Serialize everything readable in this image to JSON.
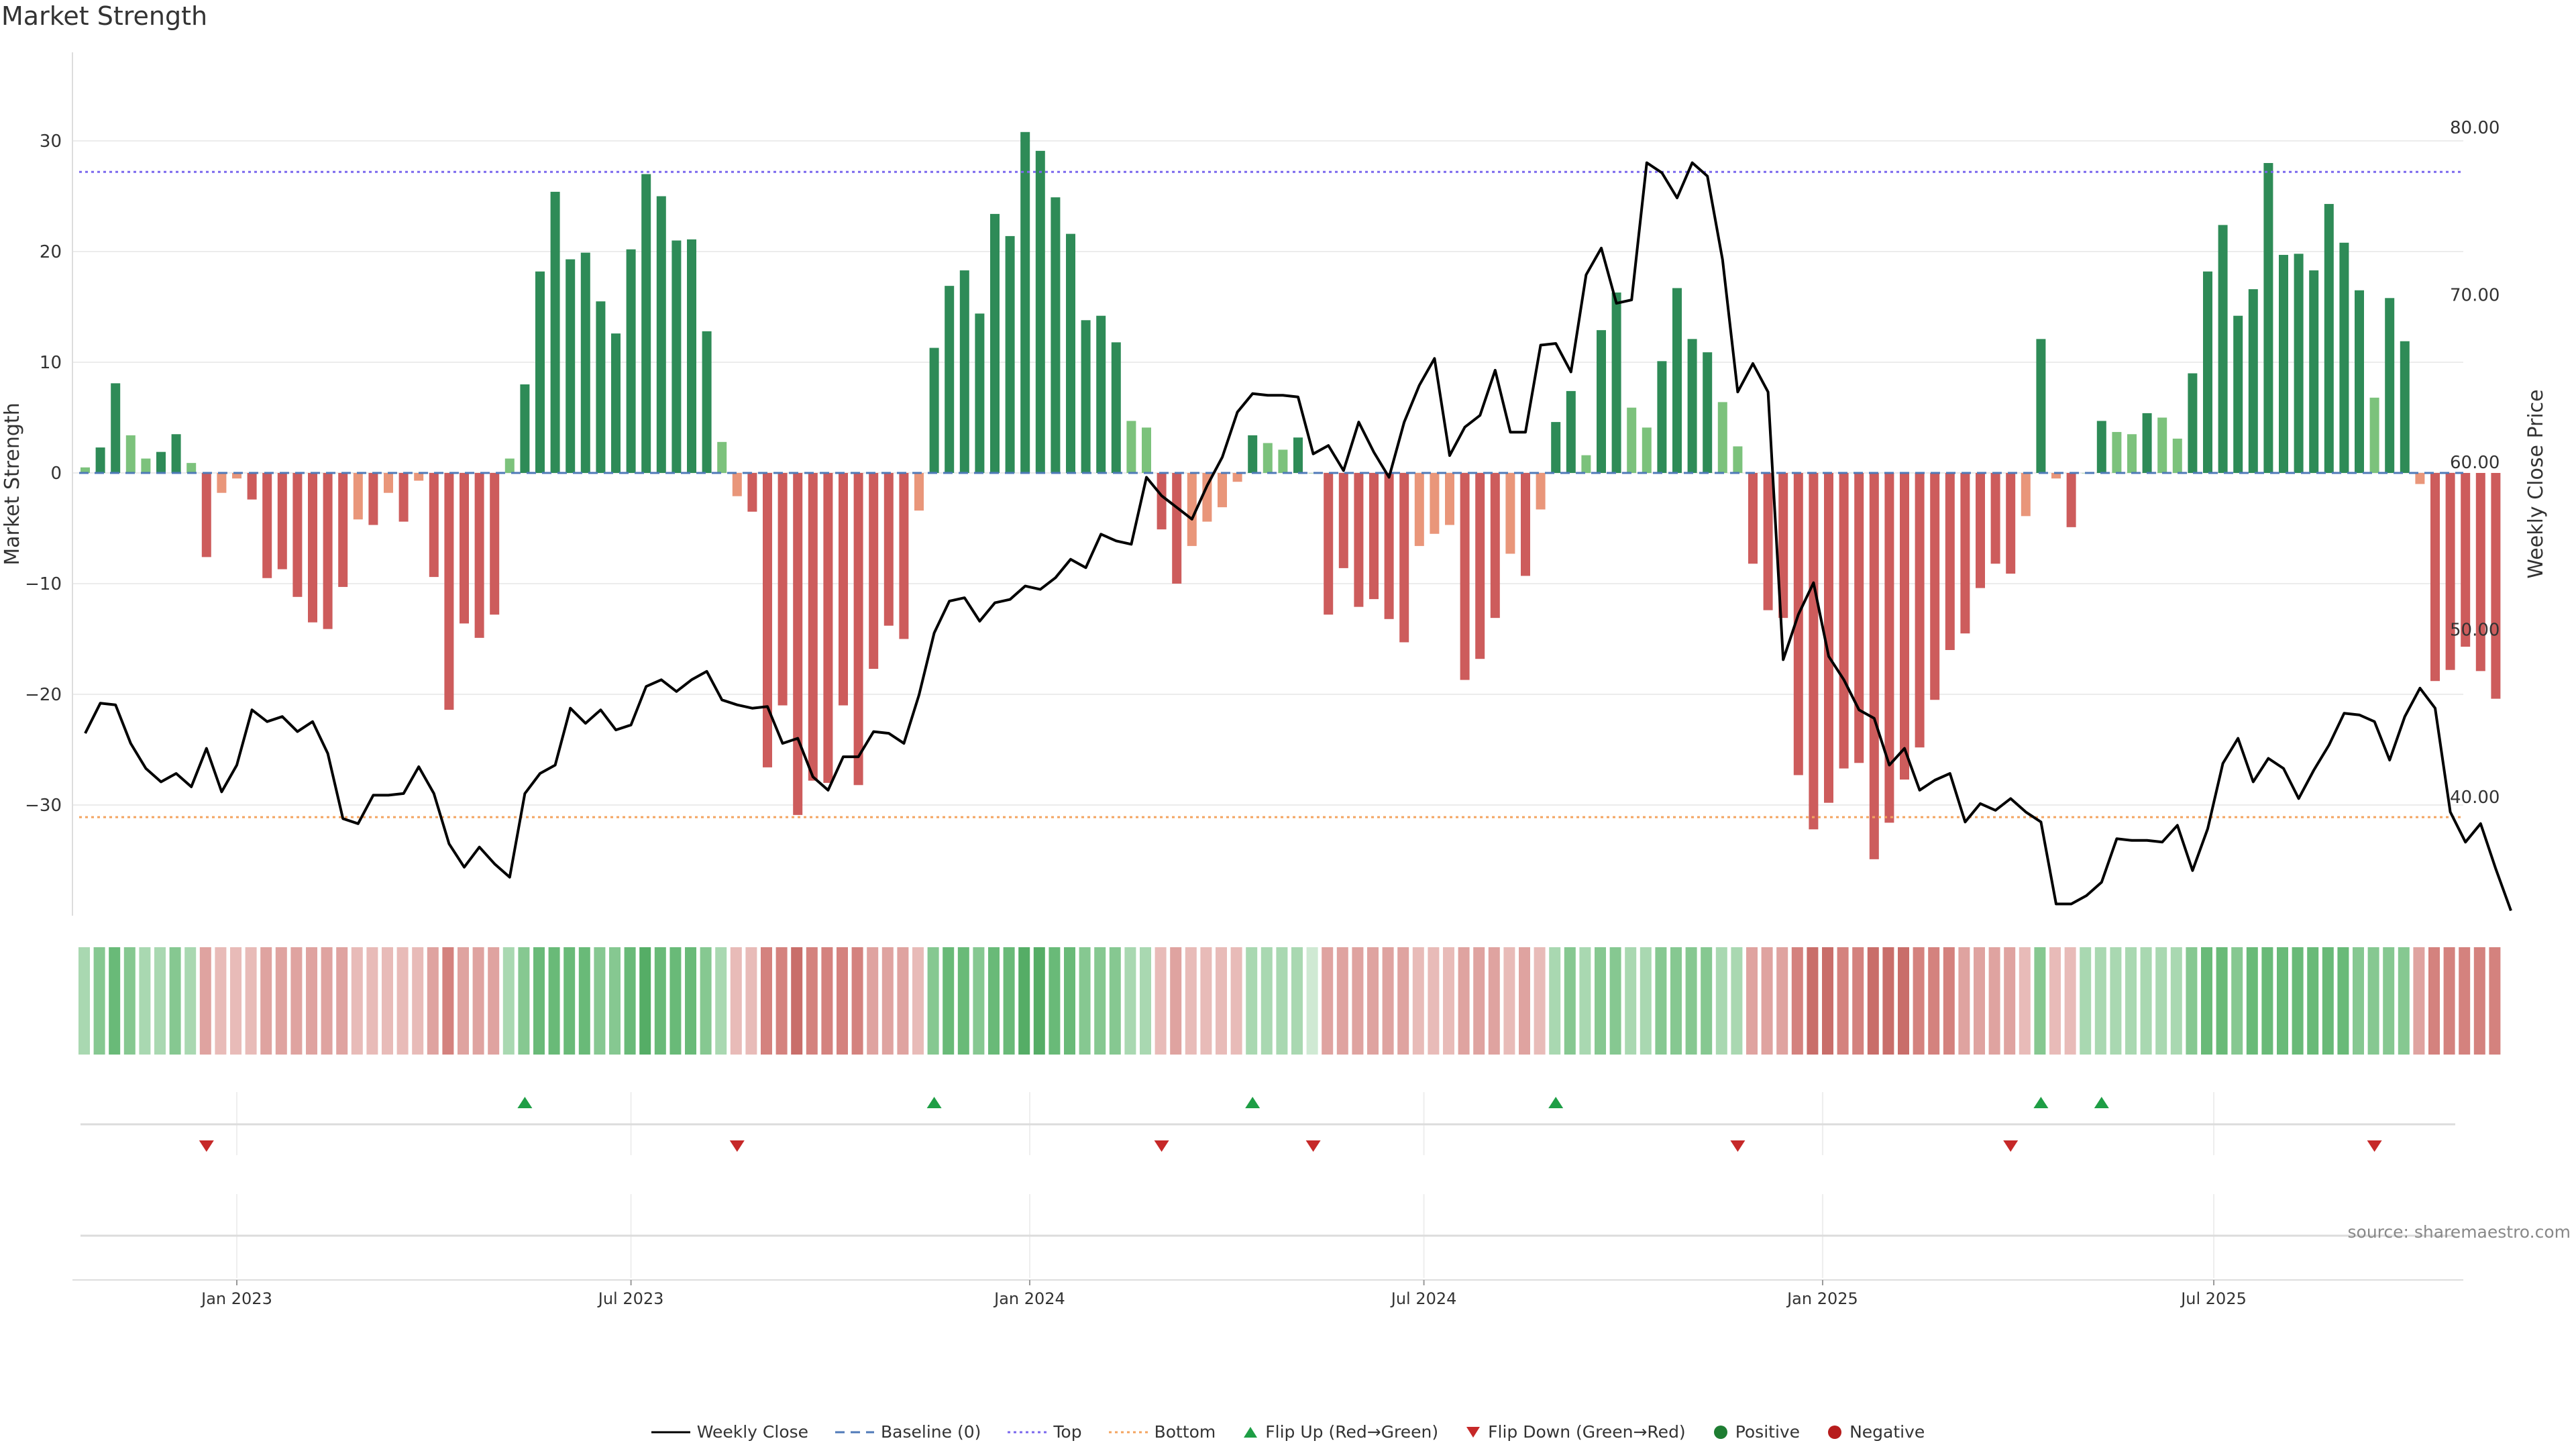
{
  "title": "Market Strength",
  "source_text": "source: sharemaestro.com",
  "colors": {
    "strong_green": "#2e8b57",
    "light_green": "#7cc27c",
    "strong_red": "#cd5c5c",
    "light_red": "#e9967a",
    "close_line": "#000000",
    "baseline": "#4f7ab8",
    "top": "#7b68ee",
    "bottom": "#f4a460",
    "flip_up": "#1e9e45",
    "flip_down": "#c62828",
    "positive": "#1e7d32",
    "negative": "#b71c1c"
  },
  "legend": [
    {
      "label": "Weekly Close",
      "kind": "line"
    },
    {
      "label": "Baseline (0)",
      "kind": "dashed"
    },
    {
      "label": "Top",
      "kind": "dotted-top"
    },
    {
      "label": "Bottom",
      "kind": "dotted-bottom"
    },
    {
      "label": "Flip Up (Red→Green)",
      "kind": "tri-up"
    },
    {
      "label": "Flip Down (Green→Red)",
      "kind": "tri-down"
    },
    {
      "label": "Positive",
      "kind": "dot-pos"
    },
    {
      "label": "Negative",
      "kind": "dot-neg"
    }
  ],
  "chart_data": {
    "type": "bar",
    "title": "Market Strength",
    "ylabel": "Market Strength",
    "y2label": "Weekly Close Price",
    "ylim": [
      -40,
      38
    ],
    "y2lim": [
      32.9,
      84.5
    ],
    "yticks": [
      -30,
      -20,
      -10,
      0,
      10,
      20,
      30
    ],
    "ytick_labels": [
      "−30",
      "−20",
      "−10",
      "0",
      "10",
      "20",
      "30"
    ],
    "y2ticks": [
      40,
      50,
      60,
      70,
      80
    ],
    "y2tick_labels": [
      "40.00",
      "50.00",
      "60.00",
      "70.00",
      "80.00"
    ],
    "top_level": 27.2,
    "bottom_level": -31.1,
    "x_ticks": [
      {
        "label": "Jan 2023",
        "week": 10
      },
      {
        "label": "Jul 2023",
        "week": 36
      },
      {
        "label": "Jan 2024",
        "week": 62.3
      },
      {
        "label": "Jul 2024",
        "week": 88.3
      },
      {
        "label": "Jan 2025",
        "week": 114.6
      },
      {
        "label": "Jul 2025",
        "week": 140.4
      }
    ],
    "strength": [
      0.5,
      2.3,
      8.1,
      3.4,
      1.3,
      1.9,
      3.5,
      0.9,
      -7.6,
      -1.8,
      -0.5,
      -2.4,
      -9.5,
      -8.7,
      -11.2,
      -13.5,
      -14.1,
      -10.3,
      -4.2,
      -4.7,
      -1.8,
      -4.4,
      -0.7,
      -9.4,
      -21.4,
      -13.6,
      -14.9,
      -12.8,
      1.3,
      8.0,
      18.2,
      25.4,
      19.3,
      19.9,
      15.5,
      12.6,
      20.2,
      27.0,
      25.0,
      21.0,
      21.1,
      12.8,
      2.8,
      -2.1,
      -3.5,
      -26.6,
      -21.0,
      -30.9,
      -27.8,
      -28.0,
      -21.0,
      -28.2,
      -17.7,
      -13.8,
      -15.0,
      -3.4,
      11.3,
      16.9,
      18.3,
      14.4,
      23.4,
      21.4,
      30.8,
      29.1,
      24.9,
      21.6,
      13.8,
      14.2,
      11.8,
      4.7,
      4.1,
      -5.1,
      -10.0,
      -6.6,
      -4.4,
      -3.1,
      -0.8,
      3.4,
      2.7,
      2.1,
      3.2,
      0.0,
      -12.8,
      -8.6,
      -12.1,
      -11.4,
      -13.2,
      -15.3,
      -6.6,
      -5.5,
      -4.7,
      -18.7,
      -16.8,
      -13.1,
      -7.3,
      -9.3,
      -3.3,
      4.6,
      7.4,
      1.6,
      12.9,
      16.3,
      5.9,
      4.1,
      10.1,
      16.7,
      12.1,
      10.9,
      6.4,
      2.4,
      -8.2,
      -12.4,
      -13.1,
      -27.3,
      -32.2,
      -29.8,
      -26.7,
      -26.2,
      -34.9,
      -31.6,
      -27.7,
      -24.8,
      -20.5,
      -16.0,
      -14.5,
      -10.4,
      -8.2,
      -9.1,
      -3.9,
      12.1,
      -0.5,
      -4.9,
      0.0,
      4.7,
      3.7,
      3.5,
      5.4,
      5.0,
      3.1,
      9.0,
      18.2,
      22.4,
      14.2,
      16.6,
      28.0,
      19.7,
      19.8,
      18.3,
      24.3,
      20.8,
      16.5,
      6.8,
      15.8,
      11.9,
      -1.0,
      -18.8,
      -17.8,
      -15.7,
      -17.9,
      -20.4
    ],
    "weekly_close": [
      43.8,
      45.6,
      45.5,
      43.2,
      41.7,
      40.9,
      41.4,
      40.6,
      42.9,
      40.3,
      41.9,
      45.2,
      44.5,
      44.8,
      43.9,
      44.5,
      42.6,
      38.7,
      38.4,
      40.1,
      40.1,
      40.2,
      41.8,
      40.2,
      37.2,
      35.8,
      37.0,
      36.0,
      35.2,
      40.2,
      41.4,
      41.9,
      45.3,
      44.4,
      45.2,
      44.0,
      44.3,
      46.6,
      47.0,
      46.3,
      47.0,
      47.5,
      45.8,
      45.5,
      45.3,
      45.4,
      43.2,
      43.5,
      41.2,
      40.4,
      42.4,
      42.4,
      43.9,
      43.8,
      43.2,
      46.1,
      49.8,
      51.7,
      51.9,
      50.5,
      51.6,
      51.8,
      52.6,
      52.4,
      53.1,
      54.2,
      53.7,
      55.7,
      55.3,
      55.1,
      59.1,
      58.0,
      57.3,
      56.6,
      58.6,
      60.3,
      63.0,
      64.1,
      64.0,
      64.0,
      63.9,
      60.5,
      61.0,
      59.5,
      62.4,
      60.6,
      59.1,
      62.4,
      64.6,
      66.2,
      60.4,
      62.1,
      62.8,
      65.5,
      61.8,
      61.8,
      67.0,
      67.1,
      65.4,
      71.2,
      72.8,
      69.5,
      69.7,
      77.9,
      77.3,
      75.8,
      77.9,
      77.1,
      72.1,
      64.2,
      65.9,
      64.2,
      48.2,
      50.9,
      52.8,
      48.4,
      47.0,
      45.2,
      44.7,
      41.9,
      42.9,
      40.4,
      41.0,
      41.4,
      38.5,
      39.6,
      39.2,
      39.9,
      39.1,
      38.5,
      33.6,
      33.6,
      34.1,
      34.9,
      37.5,
      37.4,
      37.4,
      37.3,
      38.3,
      35.6,
      38.1,
      42.0,
      43.5,
      40.9,
      42.3,
      41.7,
      39.9,
      41.6,
      43.1,
      45.0,
      44.9,
      44.5,
      42.2,
      44.8,
      46.5,
      45.3,
      39.1,
      37.3,
      38.4,
      35.7,
      33.2
    ],
    "heat_level": [
      1,
      2,
      3,
      2,
      1,
      1,
      2,
      1,
      -2,
      -1,
      -1,
      -1,
      -2,
      -2,
      -2,
      -2,
      -2,
      -2,
      -1,
      -1,
      -1,
      -1,
      -1,
      -2,
      -3,
      -2,
      -2,
      -2,
      1,
      2,
      3,
      3,
      3,
      3,
      2,
      2,
      3,
      4,
      3,
      3,
      3,
      2,
      1,
      -1,
      -1,
      -3,
      -3,
      -4,
      -3,
      -3,
      -3,
      -3,
      -2,
      -2,
      -2,
      -1,
      2,
      3,
      3,
      2,
      3,
      3,
      4,
      4,
      3,
      3,
      2,
      2,
      2,
      1,
      1,
      -1,
      -2,
      -1,
      -1,
      -1,
      -1,
      1,
      1,
      1,
      1,
      0,
      -2,
      -2,
      -2,
      -2,
      -2,
      -2,
      -1,
      -1,
      -1,
      -2,
      -2,
      -2,
      -1,
      -2,
      -1,
      1,
      2,
      1,
      2,
      2,
      1,
      1,
      2,
      2,
      2,
      2,
      1,
      1,
      -2,
      -2,
      -2,
      -3,
      -4,
      -4,
      -3,
      -3,
      -4,
      -4,
      -4,
      -3,
      -3,
      -3,
      -2,
      -2,
      -2,
      -2,
      -1,
      2,
      -1,
      -1,
      1,
      1,
      1,
      1,
      1,
      1,
      1,
      2,
      3,
      3,
      2,
      3,
      3,
      3,
      3,
      3,
      3,
      3,
      2,
      2,
      2,
      2,
      -2,
      -3,
      -3,
      -3,
      -3,
      -3
    ],
    "flip_up_weeks": [
      29,
      56,
      77,
      97,
      129,
      133
    ],
    "flip_down_weeks": [
      8,
      43,
      71,
      81,
      109,
      127,
      151
    ]
  }
}
